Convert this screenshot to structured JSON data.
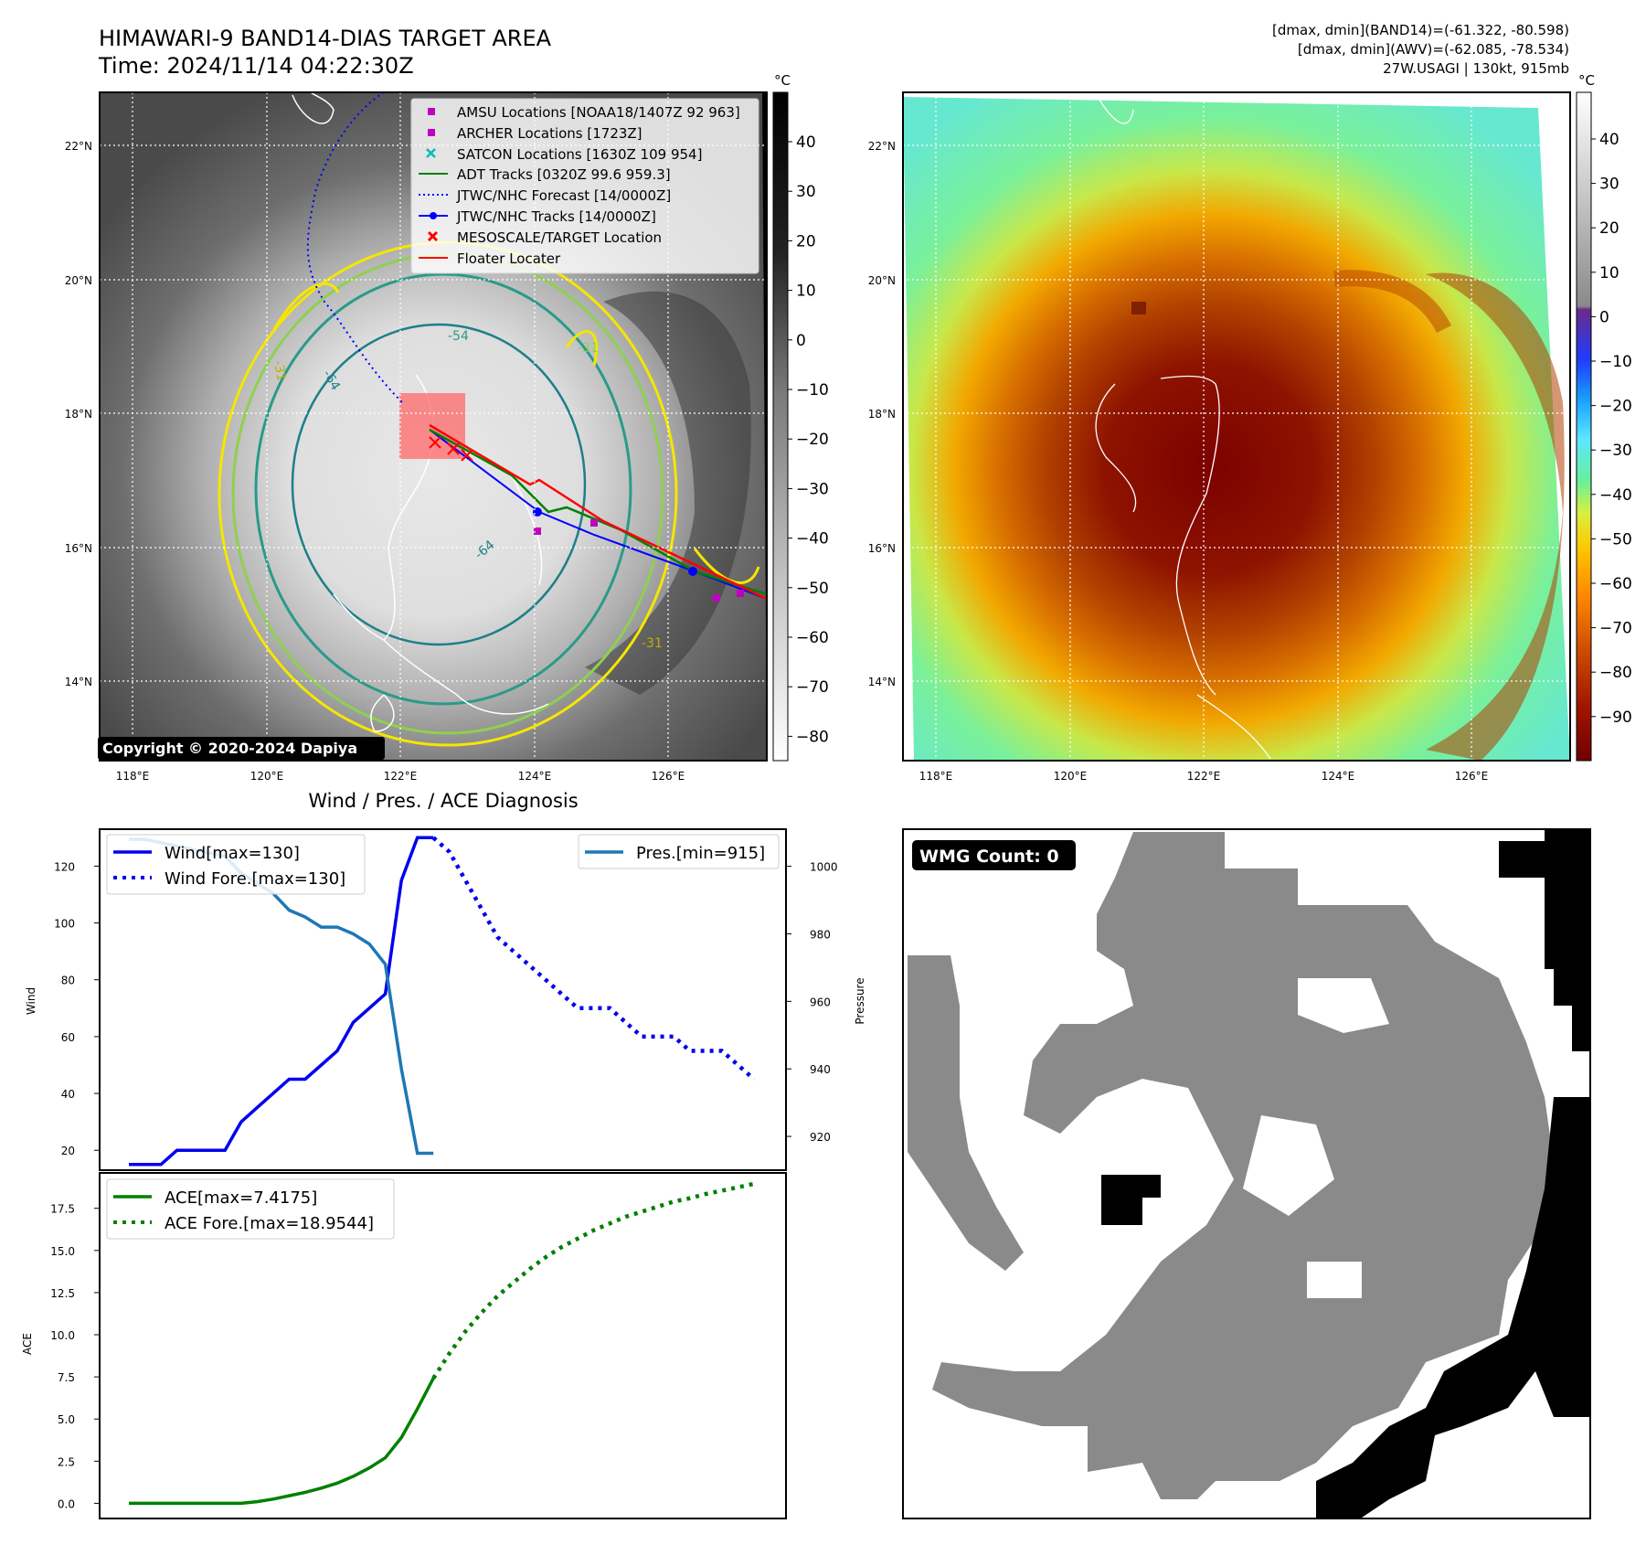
{
  "header": {
    "title_line1": "HIMAWARI-9 BAND14-DIAS TARGET AREA",
    "title_line2": "Time: 2024/11/14 04:22:30Z",
    "stats_line1": "[dmax, dmin](BAND14)=(-61.322, -80.598)",
    "stats_line2": "[dmax, dmin](AWV)=(-62.085, -78.534)",
    "stats_line3": "27W.USAGI | 130kt, 915mb"
  },
  "map": {
    "lat_labels": [
      "22°N",
      "20°N",
      "18°N",
      "16°N",
      "14°N"
    ],
    "lon_labels": [
      "118°E",
      "120°E",
      "122°E",
      "124°E",
      "126°E"
    ],
    "copyright": "Copyright © 2020-2024 Dapiya",
    "colorbar_unit": "°C",
    "gray_colorbar_ticks": [
      "40",
      "30",
      "20",
      "10",
      "0",
      "−10",
      "−20",
      "−30",
      "−40",
      "−50",
      "−60",
      "−70",
      "−80"
    ],
    "color_colorbar_ticks": [
      "40",
      "30",
      "20",
      "10",
      "0",
      "−10",
      "−20",
      "−30",
      "−40",
      "−50",
      "−60",
      "−70",
      "−80",
      "−90"
    ],
    "contour_labels": [
      "-54",
      "-64",
      "-64",
      "-31",
      "-31",
      "-31"
    ],
    "legend": [
      {
        "label": "AMSU Locations [NOAA18/1407Z 92 963]",
        "color": "#c000c0",
        "symbol": "square"
      },
      {
        "label": "ARCHER Locations [1723Z]",
        "color": "#c000c0",
        "symbol": "square"
      },
      {
        "label": "SATCON Locations [1630Z 109 954]",
        "color": "#00bcbc",
        "symbol": "x"
      },
      {
        "label": "ADT Tracks [0320Z 99.6 959.3]",
        "color": "#008000",
        "symbol": "line"
      },
      {
        "label": "JTWC/NHC Forecast [14/0000Z]",
        "color": "#0000ff",
        "symbol": "dotted"
      },
      {
        "label": "JTWC/NHC Tracks [14/0000Z]",
        "color": "#0000ff",
        "symbol": "line-dot"
      },
      {
        "label": "MESOSCALE/TARGET Location",
        "color": "#ff0000",
        "symbol": "x"
      },
      {
        "label": "Floater Locater",
        "color": "#ff0000",
        "symbol": "line"
      }
    ]
  },
  "wmg": {
    "label": "WMG Count: 0"
  },
  "chart_data": [
    {
      "type": "line",
      "title": "Wind / Pres. / ACE Diagnosis",
      "ylabel": "Wind",
      "y2label": "Pressure",
      "ylim": [
        13,
        133
      ],
      "y2lim": [
        910,
        1011
      ],
      "yticks": [
        20,
        40,
        60,
        80,
        100,
        120
      ],
      "y2ticks": [
        920,
        940,
        960,
        980,
        1000
      ],
      "x": [
        0,
        1,
        2,
        3,
        4,
        5,
        6,
        7,
        8,
        9,
        10,
        11,
        12,
        13,
        14,
        15,
        16,
        17,
        18,
        19,
        20,
        21,
        22,
        23,
        24,
        25,
        26,
        27,
        28,
        29,
        30,
        31,
        32,
        33,
        34,
        35,
        36,
        37,
        38,
        39
      ],
      "series": [
        {
          "name": "Wind[max=130]",
          "axis": "left",
          "color": "#0000ee",
          "style": "solid",
          "x": [
            0,
            1,
            2,
            3,
            4,
            5,
            6,
            7,
            8,
            9,
            10,
            11,
            12,
            13,
            14,
            15,
            16,
            17,
            18,
            19
          ],
          "values": [
            15,
            15,
            15,
            20,
            20,
            20,
            20,
            30,
            35,
            40,
            45,
            45,
            50,
            55,
            65,
            70,
            75,
            115,
            130,
            130
          ]
        },
        {
          "name": "Wind Fore.[max=130]",
          "axis": "left",
          "color": "#0000ee",
          "style": "dotted",
          "x": [
            19,
            20,
            21,
            22,
            23,
            24,
            25,
            26,
            27,
            28,
            29,
            30,
            31,
            32,
            33,
            34,
            35,
            36,
            37,
            38,
            39
          ],
          "values": [
            130,
            125,
            115,
            105,
            95,
            90,
            85,
            80,
            75,
            70,
            70,
            70,
            65,
            60,
            60,
            60,
            55,
            55,
            55,
            50,
            45
          ]
        },
        {
          "name": "Pres.[min=915]",
          "axis": "right",
          "color": "#1f77b4",
          "style": "solid",
          "x": [
            0,
            1,
            2,
            3,
            4,
            5,
            6,
            7,
            8,
            9,
            10,
            11,
            12,
            13,
            14,
            15,
            16,
            17,
            18,
            19
          ],
          "values": [
            1008,
            1008,
            1007,
            1006,
            1005,
            1004,
            1003,
            998,
            995,
            992,
            987,
            985,
            982,
            982,
            980,
            977,
            971,
            940,
            915,
            915
          ]
        }
      ],
      "legend_left": "upper-left",
      "legend_right": "upper-right"
    },
    {
      "type": "line",
      "ylabel": "ACE",
      "ylim": [
        -0.9,
        19.6
      ],
      "yticks": [
        0.0,
        2.5,
        5.0,
        7.5,
        10.0,
        12.5,
        15.0,
        17.5
      ],
      "ytick_labels": [
        "0.0",
        "2.5",
        "5.0",
        "7.5",
        "10.0",
        "12.5",
        "15.0",
        "17.5"
      ],
      "series": [
        {
          "name": "ACE[max=7.4175]",
          "color": "#008000",
          "style": "solid",
          "x": [
            0,
            1,
            2,
            3,
            4,
            5,
            6,
            7,
            8,
            9,
            10,
            11,
            12,
            13,
            14,
            15,
            16,
            17,
            18,
            19
          ],
          "values": [
            0,
            0,
            0,
            0,
            0,
            0,
            0,
            0,
            0.1,
            0.25,
            0.45,
            0.65,
            0.9,
            1.2,
            1.6,
            2.1,
            2.7,
            3.9,
            5.6,
            7.4175
          ]
        },
        {
          "name": "ACE Fore.[max=18.9544]",
          "color": "#008000",
          "style": "dotted",
          "x": [
            19,
            20,
            21,
            22,
            23,
            24,
            25,
            26,
            27,
            28,
            29,
            30,
            31,
            32,
            33,
            34,
            35,
            36,
            37,
            38,
            39
          ],
          "values": [
            7.4175,
            8.9,
            10.2,
            11.3,
            12.3,
            13.1,
            13.9,
            14.6,
            15.2,
            15.7,
            16.2,
            16.6,
            17.0,
            17.3,
            17.6,
            17.9,
            18.1,
            18.35,
            18.55,
            18.75,
            18.9544
          ]
        }
      ],
      "legend": "upper-left"
    }
  ]
}
